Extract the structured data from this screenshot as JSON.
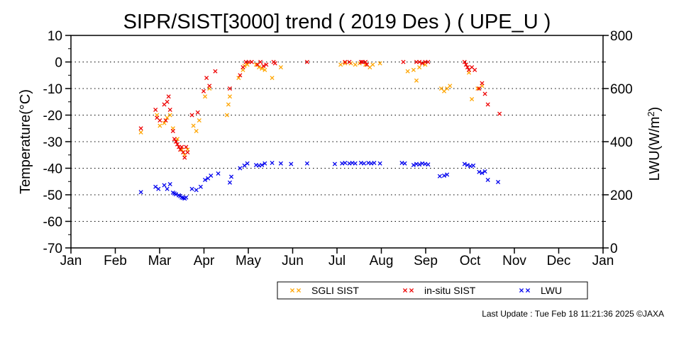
{
  "chart_data": {
    "type": "scatter",
    "title": "SIPR/SIST[3000] trend ( 2019 Des ) ( UPE_U )",
    "ylabel": "Temperature(°C)",
    "y2label_pre": "LWU(W/m",
    "y2label_sup": "2",
    "y2label_post": ")",
    "ylim": [
      -70,
      10
    ],
    "y2lim": [
      0,
      800
    ],
    "yticks": [
      "10",
      "0",
      "-10",
      "-20",
      "-30",
      "-40",
      "-50",
      "-60",
      "-70"
    ],
    "y2ticks": [
      "800",
      "600",
      "400",
      "200",
      "0"
    ],
    "months": [
      "Jan",
      "Feb",
      "Mar",
      "Apr",
      "May",
      "Jun",
      "Jul",
      "Aug",
      "Sep",
      "Oct",
      "Nov",
      "Dec",
      "Jan"
    ],
    "grid": "dotted horizontal",
    "legend_position": "bottom-right",
    "series": [
      {
        "name": "SGLI SIST",
        "color": "#ffa500",
        "axis": "left",
        "points": [
          [
            "2019-02-18",
            -26.5
          ],
          [
            "2019-03-01",
            -20
          ],
          [
            "2019-03-03",
            -24
          ],
          [
            "2019-03-06",
            -23
          ],
          [
            "2019-03-08",
            -21
          ],
          [
            "2019-03-10",
            -20
          ],
          [
            "2019-03-12",
            -25
          ],
          [
            "2019-03-15",
            -29
          ],
          [
            "2019-03-18",
            -33
          ],
          [
            "2019-03-20",
            -35
          ],
          [
            "2019-03-22",
            -33
          ],
          [
            "2019-03-26",
            -24
          ],
          [
            "2019-03-28",
            -26
          ],
          [
            "2019-03-30",
            -22
          ],
          [
            "2019-04-03",
            -13
          ],
          [
            "2019-04-06",
            -10
          ],
          [
            "2019-04-18",
            -20
          ],
          [
            "2019-04-19",
            -16
          ],
          [
            "2019-04-20",
            -13
          ],
          [
            "2019-04-26",
            -6
          ],
          [
            "2019-04-29",
            -3
          ],
          [
            "2019-04-30",
            -1.5
          ],
          [
            "2019-05-02",
            -1
          ],
          [
            "2019-05-08",
            -1
          ],
          [
            "2019-05-10",
            -2
          ],
          [
            "2019-05-12",
            -2.5
          ],
          [
            "2019-05-14",
            -3
          ],
          [
            "2019-05-19",
            -6
          ],
          [
            "2019-05-25",
            -2
          ],
          [
            "2019-07-05",
            -1
          ],
          [
            "2019-07-08",
            -0.5
          ],
          [
            "2019-07-12",
            -0.5
          ],
          [
            "2019-07-15",
            -1
          ],
          [
            "2019-07-18",
            -0.5
          ],
          [
            "2019-07-22",
            -1
          ],
          [
            "2019-07-25",
            -2
          ],
          [
            "2019-07-27",
            -1
          ],
          [
            "2019-08-01",
            -0.5
          ],
          [
            "2019-08-20",
            -3.5
          ],
          [
            "2019-08-24",
            -3
          ],
          [
            "2019-08-26",
            -7
          ],
          [
            "2019-08-28",
            -2
          ],
          [
            "2019-08-30",
            -0.5
          ],
          [
            "2019-09-01",
            -1
          ],
          [
            "2019-09-12",
            -10
          ],
          [
            "2019-09-14",
            -11
          ],
          [
            "2019-09-16",
            -10
          ],
          [
            "2019-09-18",
            -9
          ],
          [
            "2019-10-01",
            -4
          ],
          [
            "2019-10-03",
            -14
          ],
          [
            "2019-10-07",
            -10
          ],
          [
            "2019-10-10",
            -9
          ]
        ]
      },
      {
        "name": "in-situ SIST",
        "color": "#ee0000",
        "axis": "left",
        "points": [
          [
            "2019-02-18",
            -25
          ],
          [
            "2019-02-28",
            -18
          ],
          [
            "2019-03-01",
            -21
          ],
          [
            "2019-03-03",
            -22
          ],
          [
            "2019-03-06",
            -16
          ],
          [
            "2019-03-07",
            -22
          ],
          [
            "2019-03-08",
            -15
          ],
          [
            "2019-03-09",
            -13
          ],
          [
            "2019-03-10",
            -18
          ],
          [
            "2019-03-12",
            -26
          ],
          [
            "2019-03-13",
            -29
          ],
          [
            "2019-03-14",
            -30
          ],
          [
            "2019-03-15",
            -31
          ],
          [
            "2019-03-16",
            -32
          ],
          [
            "2019-03-17",
            -33
          ],
          [
            "2019-03-18",
            -32
          ],
          [
            "2019-03-19",
            -34
          ],
          [
            "2019-03-20",
            -36
          ],
          [
            "2019-03-21",
            -32
          ],
          [
            "2019-03-22",
            -34
          ],
          [
            "2019-03-25",
            -20
          ],
          [
            "2019-03-29",
            -19
          ],
          [
            "2019-04-02",
            -11
          ],
          [
            "2019-04-04",
            -6
          ],
          [
            "2019-04-06",
            -9
          ],
          [
            "2019-04-10",
            -3.5
          ],
          [
            "2019-04-20",
            -10
          ],
          [
            "2019-04-27",
            -5
          ],
          [
            "2019-04-29",
            -2
          ],
          [
            "2019-05-01",
            0
          ],
          [
            "2019-05-03",
            0
          ],
          [
            "2019-05-05",
            0
          ],
          [
            "2019-05-09",
            -1
          ],
          [
            "2019-05-11",
            0
          ],
          [
            "2019-05-13",
            -1.5
          ],
          [
            "2019-05-15",
            -1
          ],
          [
            "2019-05-20",
            0
          ],
          [
            "2019-05-21",
            -0.5
          ],
          [
            "2019-06-12",
            0
          ],
          [
            "2019-07-08",
            0
          ],
          [
            "2019-07-11",
            0
          ],
          [
            "2019-07-19",
            0
          ],
          [
            "2019-07-20",
            0
          ],
          [
            "2019-07-22",
            0
          ],
          [
            "2019-07-23",
            -1
          ],
          [
            "2019-08-17",
            0
          ],
          [
            "2019-08-26",
            0
          ],
          [
            "2019-08-28",
            0
          ],
          [
            "2019-08-30",
            -0.5
          ],
          [
            "2019-09-01",
            0
          ],
          [
            "2019-09-03",
            0
          ],
          [
            "2019-09-28",
            0
          ],
          [
            "2019-09-29",
            -1
          ],
          [
            "2019-09-30",
            -2
          ],
          [
            "2019-10-01",
            -3
          ],
          [
            "2019-10-03",
            -2
          ],
          [
            "2019-10-05",
            -3
          ],
          [
            "2019-10-08",
            -10
          ],
          [
            "2019-10-10",
            -8
          ],
          [
            "2019-10-12",
            -12
          ],
          [
            "2019-10-14",
            -16
          ],
          [
            "2019-10-22",
            -19.5
          ]
        ]
      },
      {
        "name": "LWU",
        "color": "#0000ee",
        "axis": "right",
        "points": [
          [
            "2019-02-18",
            210
          ],
          [
            "2019-02-28",
            230
          ],
          [
            "2019-03-02",
            222
          ],
          [
            "2019-03-06",
            236
          ],
          [
            "2019-03-08",
            222
          ],
          [
            "2019-03-10",
            240
          ],
          [
            "2019-03-12",
            208
          ],
          [
            "2019-03-13",
            205
          ],
          [
            "2019-03-14",
            202
          ],
          [
            "2019-03-16",
            198
          ],
          [
            "2019-03-17",
            195
          ],
          [
            "2019-03-18",
            190
          ],
          [
            "2019-03-19",
            188
          ],
          [
            "2019-03-20",
            186
          ],
          [
            "2019-03-21",
            190
          ],
          [
            "2019-03-25",
            222
          ],
          [
            "2019-03-28",
            218
          ],
          [
            "2019-03-31",
            230
          ],
          [
            "2019-04-03",
            256
          ],
          [
            "2019-04-05",
            262
          ],
          [
            "2019-04-07",
            272
          ],
          [
            "2019-04-12",
            280
          ],
          [
            "2019-04-20",
            246
          ],
          [
            "2019-04-21",
            268
          ],
          [
            "2019-04-27",
            300
          ],
          [
            "2019-04-30",
            310
          ],
          [
            "2019-05-02",
            318
          ],
          [
            "2019-05-08",
            312
          ],
          [
            "2019-05-10",
            310
          ],
          [
            "2019-05-12",
            312
          ],
          [
            "2019-05-14",
            318
          ],
          [
            "2019-05-19",
            320
          ],
          [
            "2019-05-25",
            318
          ],
          [
            "2019-06-01",
            316
          ],
          [
            "2019-06-12",
            318
          ],
          [
            "2019-07-01",
            316
          ],
          [
            "2019-07-06",
            318
          ],
          [
            "2019-07-08",
            320
          ],
          [
            "2019-07-11",
            318
          ],
          [
            "2019-07-13",
            320
          ],
          [
            "2019-07-15",
            318
          ],
          [
            "2019-07-19",
            320
          ],
          [
            "2019-07-21",
            318
          ],
          [
            "2019-07-24",
            320
          ],
          [
            "2019-07-26",
            318
          ],
          [
            "2019-07-28",
            320
          ],
          [
            "2019-08-01",
            318
          ],
          [
            "2019-08-16",
            320
          ],
          [
            "2019-08-18",
            318
          ],
          [
            "2019-08-24",
            312
          ],
          [
            "2019-08-26",
            316
          ],
          [
            "2019-08-28",
            314
          ],
          [
            "2019-08-30",
            318
          ],
          [
            "2019-09-01",
            316
          ],
          [
            "2019-09-03",
            314
          ],
          [
            "2019-09-11",
            270
          ],
          [
            "2019-09-14",
            272
          ],
          [
            "2019-09-16",
            276
          ],
          [
            "2019-09-28",
            316
          ],
          [
            "2019-09-30",
            312
          ],
          [
            "2019-10-02",
            308
          ],
          [
            "2019-10-04",
            310
          ],
          [
            "2019-10-08",
            286
          ],
          [
            "2019-10-10",
            282
          ],
          [
            "2019-10-12",
            288
          ],
          [
            "2019-10-14",
            256
          ],
          [
            "2019-10-21",
            248
          ]
        ]
      }
    ]
  },
  "footer": "Last Update : Tue Feb 18 11:21:36 2025  ©JAXA"
}
